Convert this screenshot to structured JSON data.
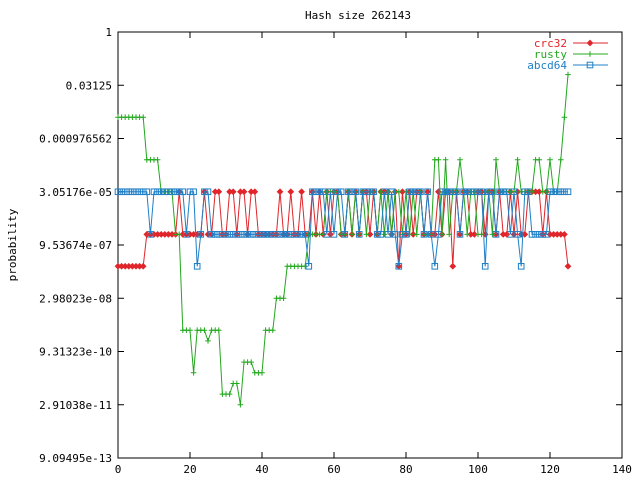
{
  "chart_data": {
    "type": "line",
    "title": "Hash size 262143",
    "xlabel": "",
    "ylabel": "probability",
    "xlim": [
      0,
      140
    ],
    "log_scale_y": true,
    "log_base": 2,
    "ylim_log2": [
      -40,
      0
    ],
    "x_ticks": [
      0,
      20,
      40,
      60,
      80,
      100,
      120,
      140
    ],
    "y_ticks": [
      {
        "label": "1",
        "log2": 0
      },
      {
        "label": "0.03125",
        "log2": -5
      },
      {
        "label": "0.000976562",
        "log2": -10
      },
      {
        "label": "3.05176e-05",
        "log2": -15
      },
      {
        "label": "9.53674e-07",
        "log2": -20
      },
      {
        "label": "2.98023e-08",
        "log2": -25
      },
      {
        "label": "9.31323e-10",
        "log2": -30
      },
      {
        "label": "2.91038e-11",
        "log2": -35
      },
      {
        "label": "9.09495e-13",
        "log2": -40
      }
    ],
    "legend_position": "top-right",
    "series": [
      {
        "name": "crc32",
        "color": "#e0262b",
        "marker": "diamond",
        "x": [
          0,
          1,
          2,
          3,
          4,
          5,
          6,
          7,
          8,
          9,
          10,
          11,
          12,
          13,
          14,
          15,
          16,
          17,
          18,
          19,
          20,
          21,
          22,
          23,
          24,
          25,
          26,
          27,
          28,
          29,
          30,
          31,
          32,
          33,
          34,
          35,
          36,
          37,
          38,
          39,
          40,
          41,
          42,
          43,
          44,
          45,
          46,
          47,
          48,
          49,
          50,
          51,
          52,
          53,
          54,
          55,
          56,
          57,
          58,
          59,
          60,
          61,
          62,
          63,
          64,
          65,
          66,
          67,
          68,
          69,
          70,
          71,
          72,
          73,
          74,
          75,
          76,
          77,
          78,
          79,
          80,
          81,
          82,
          83,
          84,
          85,
          86,
          87,
          88,
          89,
          90,
          91,
          92,
          93,
          94,
          95,
          96,
          97,
          98,
          99,
          100,
          101,
          102,
          103,
          104,
          105,
          106,
          107,
          108,
          109,
          110,
          111,
          112,
          113,
          114,
          115,
          116,
          117,
          118,
          119,
          120,
          121,
          122,
          123,
          124,
          125
        ],
        "log2": [
          -22,
          -22,
          -22,
          -22,
          -22,
          -22,
          -22,
          -22,
          -19,
          -19,
          -19,
          -19,
          -19,
          -19,
          -19,
          -19,
          -19,
          -15,
          -19,
          -19,
          -19,
          -19,
          -19,
          -19,
          -15,
          -19,
          -19,
          -15,
          -15,
          -19,
          -19,
          -15,
          -15,
          -19,
          -15,
          -15,
          -19,
          -15,
          -15,
          -19,
          -19,
          -19,
          -19,
          -19,
          -19,
          -15,
          -19,
          -19,
          -15,
          -19,
          -19,
          -15,
          -19,
          -19,
          -15,
          -19,
          -15,
          -19,
          -15,
          -19,
          -15,
          -15,
          -19,
          -19,
          -15,
          -19,
          -15,
          -19,
          -15,
          -15,
          -19,
          -15,
          -19,
          -15,
          -15,
          -15,
          -19,
          -15,
          -22,
          -15,
          -19,
          -15,
          -19,
          -15,
          -15,
          -19,
          -15,
          -19,
          -19,
          -15,
          -19,
          -15,
          -15,
          -22,
          -15,
          -19,
          -15,
          -15,
          -19,
          -19,
          -15,
          -15,
          -19,
          -15,
          -15,
          -19,
          -15,
          -19,
          -19,
          -15,
          -19,
          -15,
          -19,
          -19,
          -15,
          -15,
          -15,
          -15,
          -19,
          -15,
          -19,
          -19,
          -19,
          -19,
          -19,
          -22
        ]
      },
      {
        "name": "rusty",
        "color": "#22a81d",
        "marker": "plus",
        "x": [
          0,
          1,
          2,
          3,
          4,
          5,
          6,
          7,
          8,
          9,
          10,
          11,
          12,
          13,
          14,
          15,
          16,
          17,
          18,
          19,
          20,
          21,
          22,
          23,
          24,
          25,
          26,
          27,
          28,
          29,
          30,
          31,
          32,
          33,
          34,
          35,
          36,
          37,
          38,
          39,
          40,
          41,
          42,
          43,
          44,
          45,
          46,
          47,
          48,
          49,
          50,
          51,
          52,
          53,
          54,
          55,
          56,
          57,
          58,
          59,
          60,
          61,
          62,
          63,
          64,
          65,
          66,
          67,
          68,
          69,
          70,
          71,
          72,
          73,
          74,
          75,
          76,
          77,
          78,
          79,
          80,
          81,
          82,
          83,
          84,
          85,
          86,
          87,
          88,
          89,
          90,
          91,
          92,
          93,
          94,
          95,
          96,
          97,
          98,
          99,
          100,
          101,
          102,
          103,
          104,
          105,
          106,
          107,
          108,
          109,
          110,
          111,
          112,
          113,
          114,
          115,
          116,
          117,
          118,
          119,
          120,
          121,
          122,
          123,
          124,
          125
        ],
        "log2": [
          -8,
          -8,
          -8,
          -8,
          -8,
          -8,
          -8,
          -8,
          -12,
          -12,
          -12,
          -12,
          -15,
          -15,
          -15,
          -15,
          -19,
          -19,
          -28,
          -28,
          -28,
          -32,
          -28,
          -28,
          -28,
          -29,
          -28,
          -28,
          -28,
          -34,
          -34,
          -34,
          -33,
          -33,
          -35,
          -31,
          -31,
          -31,
          -32,
          -32,
          -32,
          -28,
          -28,
          -28,
          -25,
          -25,
          -25,
          -22,
          -22,
          -22,
          -22,
          -22,
          -22,
          -19,
          -19,
          -19,
          -19,
          -19,
          -15,
          -15,
          -15,
          -15,
          -19,
          -19,
          -15,
          -19,
          -15,
          -19,
          -15,
          -19,
          -15,
          -15,
          -19,
          -15,
          -19,
          -15,
          -19,
          -15,
          -15,
          -19,
          -15,
          -19,
          -15,
          -19,
          -15,
          -19,
          -19,
          -19,
          -12,
          -12,
          -19,
          -12,
          -19,
          -15,
          -15,
          -12,
          -15,
          -19,
          -15,
          -15,
          -19,
          -19,
          -15,
          -15,
          -19,
          -12,
          -15,
          -15,
          -15,
          -15,
          -15,
          -12,
          -15,
          -15,
          -15,
          -15,
          -12,
          -12,
          -15,
          -15,
          -12,
          -15,
          -15,
          -12,
          -8,
          -4
        ]
      },
      {
        "name": "abcd64",
        "color": "#1f7fc7",
        "marker": "square",
        "x": [
          0,
          1,
          2,
          3,
          4,
          5,
          6,
          7,
          8,
          9,
          10,
          11,
          12,
          13,
          14,
          15,
          16,
          17,
          18,
          19,
          20,
          21,
          22,
          23,
          24,
          25,
          26,
          27,
          28,
          29,
          30,
          31,
          32,
          33,
          34,
          35,
          36,
          37,
          38,
          39,
          40,
          41,
          42,
          43,
          44,
          45,
          46,
          47,
          48,
          49,
          50,
          51,
          52,
          53,
          54,
          55,
          56,
          57,
          58,
          59,
          60,
          61,
          62,
          63,
          64,
          65,
          66,
          67,
          68,
          69,
          70,
          71,
          72,
          73,
          74,
          75,
          76,
          77,
          78,
          79,
          80,
          81,
          82,
          83,
          84,
          85,
          86,
          87,
          88,
          89,
          90,
          91,
          92,
          93,
          94,
          95,
          96,
          97,
          98,
          99,
          100,
          101,
          102,
          103,
          104,
          105,
          106,
          107,
          108,
          109,
          110,
          111,
          112,
          113,
          114,
          115,
          116,
          117,
          118,
          119,
          120,
          121,
          122,
          123,
          124,
          125
        ],
        "log2": [
          -15,
          -15,
          -15,
          -15,
          -15,
          -15,
          -15,
          -15,
          -15,
          -19,
          -15,
          -15,
          -15,
          -15,
          -15,
          -15,
          -15,
          -15,
          -15,
          -19,
          -15,
          -15,
          -22,
          -19,
          -15,
          -15,
          -19,
          -19,
          -19,
          -19,
          -19,
          -19,
          -19,
          -19,
          -19,
          -19,
          -19,
          -19,
          -19,
          -19,
          -19,
          -19,
          -19,
          -19,
          -19,
          -19,
          -19,
          -19,
          -19,
          -19,
          -19,
          -19,
          -19,
          -22,
          -15,
          -15,
          -15,
          -15,
          -19,
          -15,
          -19,
          -15,
          -15,
          -19,
          -15,
          -15,
          -15,
          -19,
          -15,
          -15,
          -15,
          -15,
          -19,
          -19,
          -15,
          -19,
          -15,
          -19,
          -22,
          -19,
          -19,
          -15,
          -15,
          -15,
          -15,
          -19,
          -15,
          -19,
          -22,
          -19,
          -15,
          -15,
          -15,
          -15,
          -15,
          -19,
          -15,
          -15,
          -15,
          -15,
          -15,
          -15,
          -22,
          -15,
          -15,
          -19,
          -15,
          -15,
          -15,
          -19,
          -15,
          -19,
          -22,
          -15,
          -15,
          -19,
          -19,
          -19,
          -19,
          -19,
          -15,
          -15,
          -15,
          -15,
          -15,
          -15
        ]
      }
    ]
  }
}
